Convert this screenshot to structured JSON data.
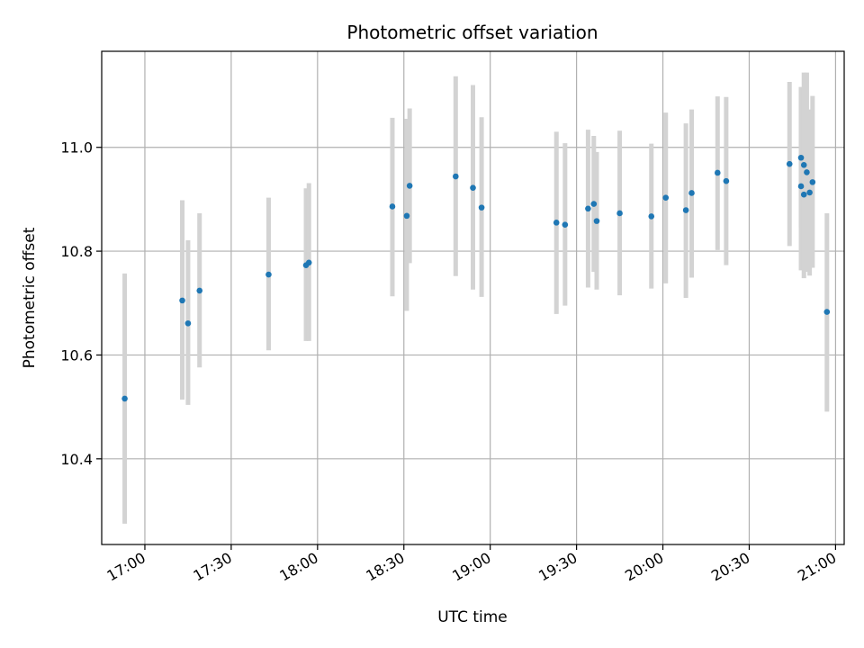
{
  "chart_data": {
    "type": "scatter",
    "title": "Photometric offset variation",
    "xlabel": "UTC time",
    "ylabel": "Photometric offset",
    "x_tick_labels": [
      "17:00",
      "17:30",
      "18:00",
      "18:30",
      "19:00",
      "19:30",
      "20:00",
      "20:30",
      "21:00"
    ],
    "y_tick_labels": [
      "10.4",
      "10.6",
      "10.8",
      "11.0"
    ],
    "y_ticks": [
      10.4,
      10.6,
      10.8,
      11.0
    ],
    "xlim": [
      "16:45",
      "21:03"
    ],
    "ylim": [
      10.235,
      11.185
    ],
    "grid": true,
    "legend": "none",
    "series": [
      {
        "marker_color": "#1f77b4",
        "errorbar_color": "#d3d3d3",
        "points": [
          {
            "x": "16:53",
            "y": 10.516,
            "ylow": 10.275,
            "yhigh": 10.757
          },
          {
            "x": "17:13",
            "y": 10.705,
            "ylow": 10.514,
            "yhigh": 10.898
          },
          {
            "x": "17:15",
            "y": 10.661,
            "ylow": 10.504,
            "yhigh": 10.821
          },
          {
            "x": "17:19",
            "y": 10.724,
            "ylow": 10.576,
            "yhigh": 10.873
          },
          {
            "x": "17:43",
            "y": 10.755,
            "ylow": 10.609,
            "yhigh": 10.903
          },
          {
            "x": "17:56",
            "y": 10.773,
            "ylow": 10.627,
            "yhigh": 10.921
          },
          {
            "x": "17:57",
            "y": 10.778,
            "ylow": 10.627,
            "yhigh": 10.931
          },
          {
            "x": "18:26",
            "y": 10.886,
            "ylow": 10.713,
            "yhigh": 11.057
          },
          {
            "x": "18:31",
            "y": 10.868,
            "ylow": 10.685,
            "yhigh": 11.055
          },
          {
            "x": "18:32",
            "y": 10.926,
            "ylow": 10.777,
            "yhigh": 11.075
          },
          {
            "x": "18:48",
            "y": 10.944,
            "ylow": 10.752,
            "yhigh": 11.137
          },
          {
            "x": "18:54",
            "y": 10.922,
            "ylow": 10.726,
            "yhigh": 11.12
          },
          {
            "x": "18:57",
            "y": 10.884,
            "ylow": 10.712,
            "yhigh": 11.058
          },
          {
            "x": "19:23",
            "y": 10.855,
            "ylow": 10.679,
            "yhigh": 11.03
          },
          {
            "x": "19:26",
            "y": 10.851,
            "ylow": 10.695,
            "yhigh": 11.008
          },
          {
            "x": "19:34",
            "y": 10.882,
            "ylow": 10.73,
            "yhigh": 11.034
          },
          {
            "x": "19:36",
            "y": 10.891,
            "ylow": 10.76,
            "yhigh": 11.022
          },
          {
            "x": "19:37",
            "y": 10.858,
            "ylow": 10.726,
            "yhigh": 10.991
          },
          {
            "x": "19:45",
            "y": 10.873,
            "ylow": 10.715,
            "yhigh": 11.032
          },
          {
            "x": "19:56",
            "y": 10.867,
            "ylow": 10.728,
            "yhigh": 11.007
          },
          {
            "x": "20:01",
            "y": 10.903,
            "ylow": 10.738,
            "yhigh": 11.067
          },
          {
            "x": "20:08",
            "y": 10.879,
            "ylow": 10.71,
            "yhigh": 11.046
          },
          {
            "x": "20:10",
            "y": 10.912,
            "ylow": 10.749,
            "yhigh": 11.073
          },
          {
            "x": "20:19",
            "y": 10.951,
            "ylow": 10.802,
            "yhigh": 11.098
          },
          {
            "x": "20:22",
            "y": 10.935,
            "ylow": 10.773,
            "yhigh": 11.097
          },
          {
            "x": "20:44",
            "y": 10.968,
            "ylow": 10.81,
            "yhigh": 11.126
          },
          {
            "x": "20:48",
            "y": 10.98,
            "ylow": 10.846,
            "yhigh": 11.116
          },
          {
            "x": "20:48",
            "y": 10.925,
            "ylow": 10.763,
            "yhigh": 11.116
          },
          {
            "x": "20:49",
            "y": 10.966,
            "ylow": 10.788,
            "yhigh": 11.144
          },
          {
            "x": "20:49",
            "y": 10.909,
            "ylow": 10.748,
            "yhigh": 11.071
          },
          {
            "x": "20:50",
            "y": 10.952,
            "ylow": 10.76,
            "yhigh": 11.144
          },
          {
            "x": "20:51",
            "y": 10.913,
            "ylow": 10.753,
            "yhigh": 11.073
          },
          {
            "x": "20:52",
            "y": 10.933,
            "ylow": 10.768,
            "yhigh": 11.099
          },
          {
            "x": "20:57",
            "y": 10.683,
            "ylow": 10.491,
            "yhigh": 10.873
          }
        ]
      }
    ]
  }
}
